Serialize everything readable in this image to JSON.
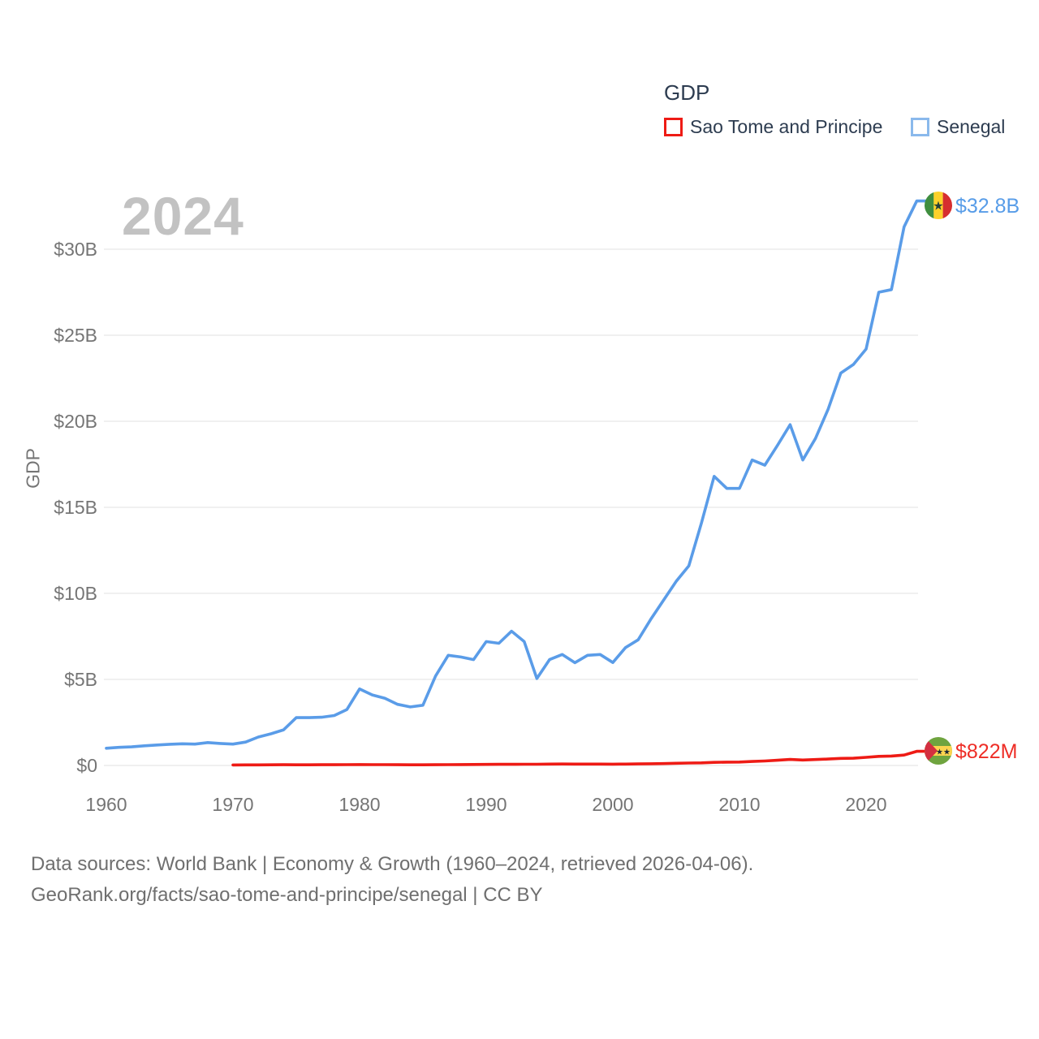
{
  "legend": {
    "title": "GDP",
    "items": [
      {
        "label": "Sao Tome and Principe",
        "swatch_color": "#ee1b15"
      },
      {
        "label": "Senegal",
        "swatch_color": "#8ab9ec"
      }
    ]
  },
  "watermark": "2024",
  "end_labels": {
    "senegal": "$32.8B",
    "sao_tome": "$822M"
  },
  "footer": {
    "line1": "Data sources: World Bank | Economy & Growth (1960–2024, retrieved 2026-04-06).",
    "line2": "GeoRank.org/facts/sao-tome-and-principe/senegal | CC BY"
  },
  "colors": {
    "senegal_line": "#5a9ce8",
    "sao_tome_line": "#ee1b15",
    "senegal_label": "#579ce8",
    "sao_tome_label": "#ee2d26",
    "gridline": "#ececec",
    "axis_text": "#757575",
    "legend_text": "#2d3c50",
    "watermark_text": "#c2c2c2",
    "footer_text": "#6f6f6f"
  },
  "chart_data": {
    "type": "line",
    "title": "GDP",
    "ylabel": "GDP",
    "xlabel": "",
    "grid": true,
    "legend_position": "top-right",
    "xlim": [
      1960,
      2025
    ],
    "ylim": [
      0,
      33
    ],
    "x_ticks": [
      1960,
      1970,
      1980,
      1990,
      2000,
      2010,
      2020
    ],
    "y_ticks": [
      {
        "value": 0,
        "label": "$0"
      },
      {
        "value": 5,
        "label": "$5B"
      },
      {
        "value": 10,
        "label": "$10B"
      },
      {
        "value": 15,
        "label": "$15B"
      },
      {
        "value": 20,
        "label": "$20B"
      },
      {
        "value": 25,
        "label": "$25B"
      },
      {
        "value": 30,
        "label": "$30B"
      }
    ],
    "units": "billions USD",
    "series": [
      {
        "name": "Sao Tome and Principe",
        "slug": "sao-tome-and-principe",
        "color": "#ee1b15",
        "end_label": "$822M",
        "end_value_billions": 0.822,
        "start_year": 1970,
        "values": [
          0.03,
          0.033,
          0.035,
          0.038,
          0.042,
          0.04,
          0.04,
          0.041,
          0.042,
          0.046,
          0.05,
          0.047,
          0.045,
          0.044,
          0.04,
          0.037,
          0.042,
          0.047,
          0.052,
          0.056,
          0.06,
          0.064,
          0.066,
          0.07,
          0.072,
          0.08,
          0.085,
          0.082,
          0.081,
          0.08,
          0.076,
          0.08,
          0.09,
          0.1,
          0.11,
          0.128,
          0.14,
          0.152,
          0.18,
          0.192,
          0.2,
          0.23,
          0.26,
          0.3,
          0.348,
          0.318,
          0.343,
          0.372,
          0.41,
          0.419,
          0.472,
          0.526,
          0.546,
          0.603,
          0.822
        ]
      },
      {
        "name": "Senegal",
        "slug": "senegal",
        "color": "#5a9ce8",
        "end_label": "$32.8B",
        "end_value_billions": 32.8,
        "start_year": 1960,
        "values": [
          1.0,
          1.05,
          1.08,
          1.14,
          1.19,
          1.23,
          1.26,
          1.24,
          1.33,
          1.28,
          1.24,
          1.36,
          1.65,
          1.84,
          2.07,
          2.78,
          2.78,
          2.8,
          2.9,
          3.25,
          4.45,
          4.1,
          3.9,
          3.55,
          3.4,
          3.5,
          5.2,
          6.4,
          6.3,
          6.15,
          7.2,
          7.1,
          7.8,
          7.2,
          5.05,
          6.15,
          6.45,
          5.97,
          6.4,
          6.45,
          5.98,
          6.85,
          7.3,
          8.5,
          9.6,
          10.7,
          11.6,
          14.1,
          16.8,
          16.1,
          16.1,
          17.75,
          17.45,
          18.6,
          19.8,
          17.75,
          19.0,
          20.7,
          22.8,
          23.3,
          24.2,
          27.5,
          27.65,
          31.3,
          32.8
        ]
      }
    ]
  }
}
